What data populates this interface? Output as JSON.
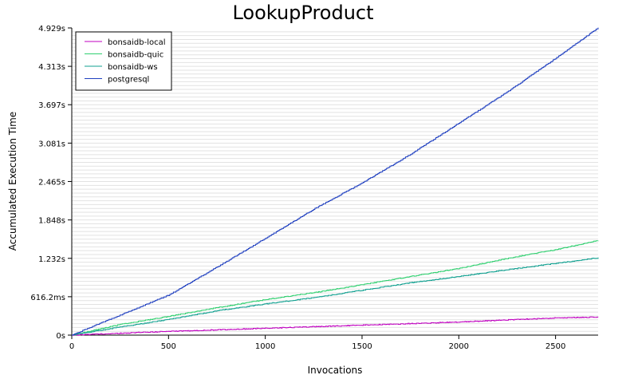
{
  "chart_data": {
    "type": "line",
    "title": "LookupProduct",
    "xlabel": "Invocations",
    "ylabel": "Accumulated Execution Time",
    "xlim": [
      0,
      2720
    ],
    "ylim": [
      0,
      4.929
    ],
    "x_ticks": [
      {
        "value": 0,
        "label": "0"
      },
      {
        "value": 500,
        "label": "500"
      },
      {
        "value": 1000,
        "label": "1000"
      },
      {
        "value": 1500,
        "label": "1500"
      },
      {
        "value": 2000,
        "label": "2000"
      },
      {
        "value": 2500,
        "label": "2500"
      }
    ],
    "y_ticks": [
      {
        "value": 0,
        "label": "0s"
      },
      {
        "value": 0.6162,
        "label": "616.2ms"
      },
      {
        "value": 1.232,
        "label": "1.232s"
      },
      {
        "value": 1.848,
        "label": "1.848s"
      },
      {
        "value": 2.465,
        "label": "2.465s"
      },
      {
        "value": 3.081,
        "label": "3.081s"
      },
      {
        "value": 3.697,
        "label": "3.697s"
      },
      {
        "value": 4.313,
        "label": "4.313s"
      },
      {
        "value": 4.929,
        "label": "4.929s"
      }
    ],
    "grid": true,
    "legend_position": "top-left",
    "series": [
      {
        "name": "bonsaidb-local",
        "color": "#c000c0",
        "x": [
          0,
          250,
          500,
          750,
          1000,
          1250,
          1500,
          1750,
          2000,
          2250,
          2500,
          2720
        ],
        "y": [
          0,
          0.03,
          0.06,
          0.085,
          0.11,
          0.135,
          0.16,
          0.185,
          0.21,
          0.245,
          0.275,
          0.29
        ]
      },
      {
        "name": "bonsaidb-quic",
        "color": "#30d070",
        "x": [
          0,
          250,
          500,
          750,
          1000,
          1250,
          1500,
          1750,
          2000,
          2250,
          2500,
          2720
        ],
        "y": [
          0,
          0.17,
          0.3,
          0.44,
          0.57,
          0.68,
          0.81,
          0.94,
          1.07,
          1.23,
          1.37,
          1.52
        ]
      },
      {
        "name": "bonsaidb-ws",
        "color": "#10a090",
        "x": [
          0,
          250,
          500,
          750,
          1000,
          1250,
          1500,
          1750,
          2000,
          2250,
          2500,
          2720
        ],
        "y": [
          0,
          0.13,
          0.25,
          0.39,
          0.5,
          0.6,
          0.72,
          0.84,
          0.94,
          1.05,
          1.15,
          1.24
        ]
      },
      {
        "name": "postgresql",
        "color": "#2040c0",
        "x": [
          0,
          250,
          500,
          750,
          1000,
          1250,
          1500,
          1750,
          2000,
          2250,
          2500,
          2720
        ],
        "y": [
          0,
          0.32,
          0.64,
          1.09,
          1.55,
          2.02,
          2.44,
          2.9,
          3.4,
          3.9,
          4.44,
          4.929
        ]
      }
    ]
  }
}
